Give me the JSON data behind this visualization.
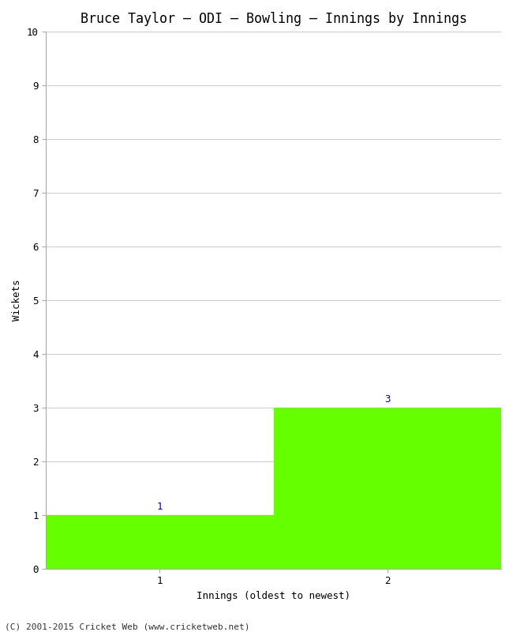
{
  "title": "Bruce Taylor – ODI – Bowling – Innings by Innings",
  "xlabel": "Innings (oldest to newest)",
  "ylabel": "Wickets",
  "categories": [
    1,
    2
  ],
  "values": [
    1,
    3
  ],
  "bar_color": "#66ff00",
  "bar_labels": [
    "1",
    "3"
  ],
  "ylim": [
    0,
    10
  ],
  "yticks": [
    0,
    1,
    2,
    3,
    4,
    5,
    6,
    7,
    8,
    9,
    10
  ],
  "xticks": [
    1,
    2
  ],
  "background_color": "#ffffff",
  "grid_color": "#cccccc",
  "footer": "(C) 2001-2015 Cricket Web (www.cricketweb.net)",
  "title_fontsize": 12,
  "label_fontsize": 9,
  "tick_fontsize": 9,
  "footer_fontsize": 8,
  "bar_label_color": "#0000cc",
  "xlim": [
    0.5,
    2.5
  ]
}
